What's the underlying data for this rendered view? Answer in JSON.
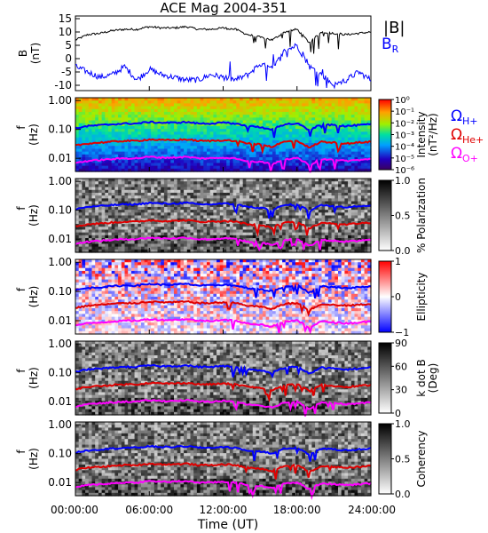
{
  "title": "ACE Mag 2004-351",
  "legend_panel1": {
    "babs": "|B|",
    "br": "B",
    "br_sub": "R"
  },
  "legend_gyro": [
    {
      "base": "Ω",
      "sub": "H+",
      "color": "#0000ff"
    },
    {
      "base": "Ω",
      "sub": "He+",
      "color": "#e00000"
    },
    {
      "base": "Ω",
      "sub": "O+",
      "color": "#ff00ff"
    }
  ],
  "xaxis": {
    "label": "Time (UT)",
    "ticks": [
      "00:00:00",
      "06:00:00",
      "12:00:00",
      "18:00:00",
      "24:00:00"
    ]
  },
  "chart_data": [
    {
      "type": "line",
      "ylabel": "B",
      "ylabel2": "(nT)",
      "ylim": [
        -12,
        16
      ],
      "yticks": [
        "15",
        "10",
        "5",
        "0",
        "-5",
        "-10"
      ],
      "series": [
        {
          "name": "|B|",
          "color": "#000000",
          "x": [
            0,
            1,
            2,
            3,
            4,
            5,
            6,
            7,
            8,
            9,
            10,
            11,
            12,
            13,
            14,
            15,
            16,
            17,
            18,
            19,
            20,
            21,
            22,
            23,
            24
          ],
          "y": [
            7,
            9,
            9.5,
            10.5,
            11,
            11,
            12,
            11.5,
            11.5,
            12,
            11,
            11,
            11.5,
            11,
            9,
            8,
            7,
            10,
            11,
            6,
            10,
            9.5,
            9,
            9.5,
            10
          ]
        },
        {
          "name": "BR",
          "color": "#0000ff",
          "x": [
            0,
            1,
            2,
            3,
            4,
            5,
            6,
            7,
            8,
            9,
            10,
            11,
            12,
            13,
            14,
            15,
            16,
            17,
            18,
            19,
            20,
            21,
            22,
            23,
            24
          ],
          "y": [
            -3,
            -5,
            -7,
            -6,
            -3,
            -8,
            -4,
            -6,
            -7,
            -8,
            -8,
            -6,
            -7,
            -8,
            -6,
            -2,
            -4,
            3,
            5,
            -3,
            -6,
            -10,
            -8,
            -5,
            -8
          ]
        }
      ]
    },
    {
      "type": "heatmap",
      "name": "power",
      "ylabel": "f",
      "ylabel2": "(Hz)",
      "yticks": [
        "1.00",
        "0.10",
        "0.01"
      ],
      "colorbar": {
        "label": "Intensity",
        "label2": "(nT²/Hz)",
        "ticks": [
          "10⁰",
          "10⁻¹",
          "10⁻²",
          "10⁻³",
          "10⁻⁴",
          "10⁻⁵",
          "10⁻⁶"
        ]
      }
    },
    {
      "type": "heatmap",
      "name": "polarization",
      "ylabel": "f",
      "ylabel2": "(Hz)",
      "yticks": [
        "1.00",
        "0.10",
        "0.01"
      ],
      "colorbar": {
        "label": "% Polarization",
        "label2": "",
        "ticks": [
          "1.0",
          "0.5",
          "0.0"
        ]
      }
    },
    {
      "type": "heatmap",
      "name": "ellipticity",
      "ylabel": "f",
      "ylabel2": "(Hz)",
      "yticks": [
        "1.00",
        "0.10",
        "0.01"
      ],
      "colorbar": {
        "label": "Ellipticity",
        "label2": "",
        "ticks": [
          "1",
          "0",
          "−1"
        ]
      }
    },
    {
      "type": "heatmap",
      "name": "kdotb",
      "ylabel": "f",
      "ylabel2": "(Hz)",
      "yticks": [
        "1.00",
        "0.10",
        "0.01"
      ],
      "colorbar": {
        "label": "k dot B",
        "label2": "(Deg)",
        "ticks": [
          "90",
          "60",
          "30",
          "0"
        ]
      }
    },
    {
      "type": "heatmap",
      "name": "coherency",
      "ylabel": "f",
      "ylabel2": "(Hz)",
      "yticks": [
        "1.00",
        "0.10",
        "0.01"
      ],
      "colorbar": {
        "label": "Coherency",
        "label2": "",
        "ticks": [
          "1.0",
          "0.5",
          "0.0"
        ]
      }
    }
  ],
  "gyro_lines": {
    "hours": [
      0,
      1,
      2,
      3,
      4,
      5,
      6,
      7,
      8,
      9,
      10,
      11,
      12,
      13,
      14,
      15,
      16,
      17,
      18,
      19,
      20,
      21,
      22,
      23,
      24
    ],
    "fH_hz": [
      0.11,
      0.13,
      0.14,
      0.15,
      0.16,
      0.16,
      0.18,
      0.17,
      0.17,
      0.18,
      0.16,
      0.16,
      0.17,
      0.16,
      0.13,
      0.12,
      0.1,
      0.15,
      0.16,
      0.09,
      0.15,
      0.14,
      0.13,
      0.14,
      0.15
    ]
  }
}
